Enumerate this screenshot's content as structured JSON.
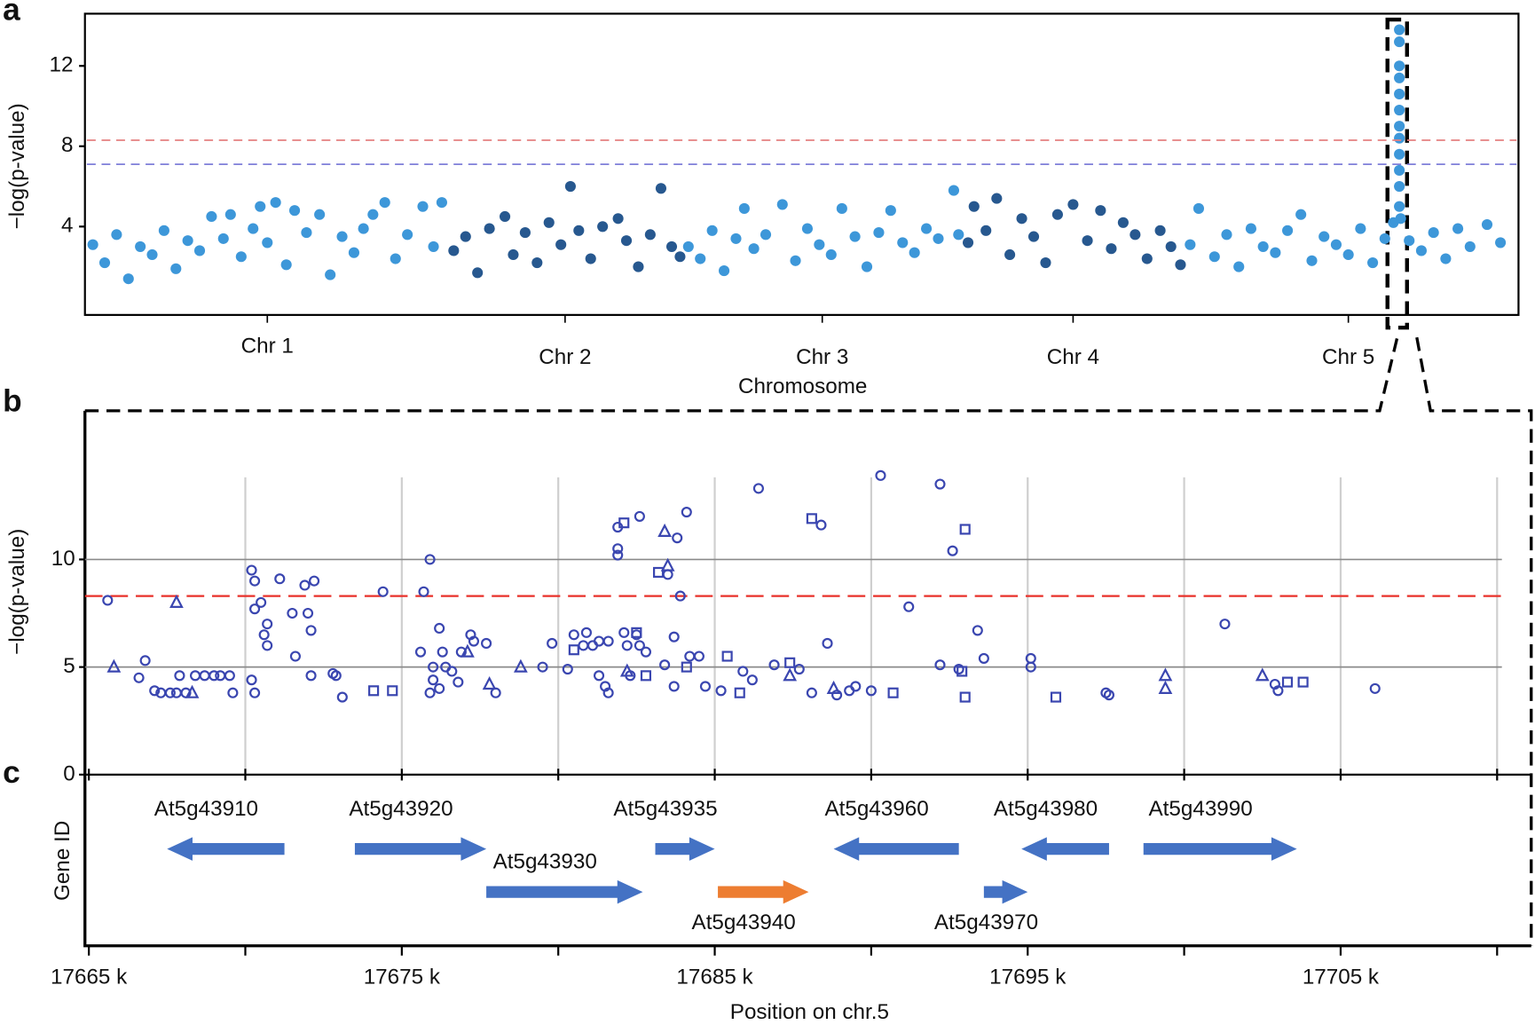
{
  "chart_data": [
    {
      "type": "manhattan",
      "label": "a",
      "xlabel": "Chromosome",
      "ylabel": "−log(p-value)",
      "ylim": [
        -0.4,
        14.6
      ],
      "yticks": [
        4,
        8,
        12
      ],
      "hlines": [
        {
          "value": 8.3,
          "color": "#e58080"
        },
        {
          "value": 7.1,
          "color": "#7f7fd8"
        }
      ],
      "categories": [
        "Chr 1",
        "Chr 2",
        "Chr 3",
        "Chr 4",
        "Chr 5"
      ],
      "series": [
        {
          "color": "#3d97d9",
          "x": [
            0.5,
            1.5,
            2.5,
            3.5,
            4.5,
            5.5,
            6.5,
            7.5,
            8.5,
            9.5,
            10.5,
            11.5,
            12.1,
            13.0,
            14.0,
            14.6,
            15.2,
            15.9,
            16.8,
            17.5,
            18.5,
            19.6,
            20.5,
            21.5,
            22.5,
            23.3,
            24.1,
            25.1,
            26.0,
            27.0,
            28.3,
            29.2,
            29.9
          ],
          "values": [
            3.1,
            2.2,
            3.6,
            1.4,
            3.0,
            2.6,
            3.8,
            1.9,
            3.3,
            2.8,
            4.5,
            3.4,
            4.6,
            2.5,
            3.9,
            5.0,
            3.2,
            5.2,
            2.1,
            4.8,
            3.7,
            4.6,
            1.6,
            3.5,
            2.7,
            3.9,
            4.6,
            5.2,
            2.4,
            3.6,
            5.0,
            3.0,
            5.2
          ]
        },
        {
          "color": "#27588f",
          "x": [
            0.5,
            1.5,
            2.5,
            3.5,
            4.8,
            5.5,
            6.5,
            7.5,
            8.5,
            9.5,
            10.3,
            11.0,
            12.0,
            13.0,
            14.3,
            15.0,
            16.0,
            17.0,
            17.9,
            18.8,
            19.5
          ],
          "values": [
            2.8,
            3.5,
            1.7,
            3.9,
            4.5,
            2.6,
            3.7,
            2.2,
            4.2,
            3.1,
            6.0,
            3.8,
            2.4,
            4.0,
            4.4,
            3.3,
            2.0,
            3.6,
            5.9,
            3.0,
            2.5
          ]
        },
        {
          "color": "#3d97d9",
          "x": [
            0.5,
            1.5,
            2.5,
            3.5,
            4.5,
            5.2,
            6.0,
            7.0,
            8.4,
            9.5,
            10.5,
            11.5,
            12.5,
            13.4,
            14.5,
            15.5,
            16.5,
            17.5,
            18.5,
            19.5,
            20.5,
            21.5,
            22.8,
            23.2
          ],
          "values": [
            3.0,
            2.4,
            3.8,
            1.8,
            3.4,
            4.9,
            2.9,
            3.6,
            5.1,
            2.3,
            3.9,
            3.1,
            2.6,
            4.9,
            3.5,
            2.0,
            3.7,
            4.8,
            3.2,
            2.7,
            3.9,
            3.4,
            5.8,
            3.6
          ]
        },
        {
          "color": "#27588f",
          "x": [
            0.5,
            1.0,
            2.0,
            2.9,
            4.0,
            5.0,
            6.0,
            7.0,
            8.0,
            9.3,
            10.5,
            11.6,
            12.5,
            13.5,
            14.5,
            15.5,
            16.6,
            17.5,
            18.3
          ],
          "values": [
            3.2,
            5.0,
            3.8,
            5.4,
            2.6,
            4.4,
            3.5,
            2.2,
            4.6,
            5.1,
            3.3,
            4.8,
            2.9,
            4.2,
            3.6,
            2.4,
            3.8,
            3.0,
            2.1
          ]
        },
        {
          "color": "#3d97d9",
          "x": [
            0.5,
            1.2,
            2.5,
            3.5,
            4.5,
            5.5,
            6.5,
            7.5,
            8.5,
            9.6,
            10.5,
            11.5,
            12.5,
            13.5,
            14.5,
            15.5,
            16.5,
            17.2,
            17.69,
            17.69,
            17.69,
            17.69,
            17.69,
            17.69,
            17.69,
            17.69,
            17.69,
            17.69,
            17.69,
            17.69,
            17.8,
            18.5,
            19.5,
            20.5,
            21.5,
            22.5,
            23.5,
            24.9,
            26.0
          ],
          "values": [
            3.1,
            4.9,
            2.5,
            3.6,
            2.0,
            3.9,
            3.0,
            2.7,
            3.8,
            4.6,
            2.3,
            3.5,
            3.1,
            2.6,
            3.9,
            2.2,
            3.4,
            4.2,
            13.8,
            13.2,
            12.0,
            11.4,
            10.6,
            9.8,
            9.0,
            8.4,
            7.6,
            6.8,
            6.0,
            5.0,
            4.4,
            3.3,
            2.8,
            3.7,
            2.4,
            3.9,
            3.0,
            4.1,
            3.2
          ]
        }
      ]
    },
    {
      "type": "scatter",
      "label": "b",
      "ylabel": "−log(p-value)",
      "xlim": [
        17664.875,
        17711.09
      ],
      "ylim": [
        0,
        17
      ],
      "yticks": [
        0,
        5,
        10
      ],
      "xgrid": [
        17670,
        17675,
        17680,
        17685,
        17690,
        17695,
        17700,
        17705,
        17710
      ],
      "hlines": [
        {
          "value": 8.3,
          "color": "#e8302a"
        }
      ],
      "series": [
        {
          "marker": "circle",
          "color": "#3a46b0",
          "x": [
            17665.6,
            17666.6,
            17666.8,
            17667.1,
            17667.3,
            17667.6,
            17667.8,
            17668.1,
            17667.9,
            17668.4,
            17668.7,
            17669.0,
            17669.2,
            17669.5,
            17669.6,
            17670.2,
            17670.3,
            17670.5,
            17670.3,
            17670.7,
            17670.6,
            17670.7,
            17670.2,
            17670.3,
            17671.1,
            17671.5,
            17671.6,
            17671.9,
            17672.2,
            17672.0,
            17672.1,
            17672.1,
            17672.8,
            17672.9,
            17673.1,
            17674.4,
            17675.7,
            17675.9,
            17675.6,
            17676.2,
            17676.0,
            17676.0,
            17676.2,
            17675.9,
            17676.3,
            17676.4,
            17676.6,
            17676.9,
            17677.2,
            17677.3,
            17677.7,
            17676.8,
            17678.0,
            17679.5,
            17679.8,
            17680.3,
            17680.5,
            17680.8,
            17680.9,
            17681.1,
            17681.3,
            17681.6,
            17681.3,
            17681.5,
            17681.6,
            17681.9,
            17681.9,
            17681.9,
            17682.6,
            17682.1,
            17682.2,
            17682.5,
            17682.6,
            17682.3,
            17682.8,
            17683.5,
            17683.8,
            17684.1,
            17683.7,
            17683.9,
            17683.4,
            17683.7,
            17684.2,
            17684.5,
            17684.7,
            17685.2,
            17685.9,
            17686.4,
            17686.2,
            17686.9,
            17687.7,
            17688.1,
            17688.4,
            17688.6,
            17688.9,
            17689.3,
            17689.5,
            17690.0,
            17690.3,
            17691.2,
            17692.2,
            17692.6,
            17692.2,
            17692.8,
            17693.4,
            17693.6,
            17695.1,
            17695.1,
            17697.5,
            17697.6,
            17701.3,
            17702.9,
            17703.0,
            17706.1
          ],
          "values": [
            8.1,
            4.5,
            5.3,
            3.9,
            3.8,
            3.8,
            3.8,
            3.8,
            4.6,
            4.6,
            4.6,
            4.6,
            4.6,
            4.6,
            3.8,
            9.5,
            9.0,
            8.0,
            7.7,
            7.0,
            6.5,
            6.0,
            4.4,
            3.8,
            9.1,
            7.5,
            5.5,
            8.8,
            9.0,
            7.5,
            6.7,
            4.6,
            4.7,
            4.6,
            3.6,
            8.5,
            8.5,
            10.0,
            5.7,
            6.8,
            5.0,
            4.4,
            4.0,
            3.8,
            5.7,
            5.0,
            4.8,
            5.7,
            6.5,
            6.2,
            6.1,
            4.3,
            3.8,
            5.0,
            6.1,
            4.9,
            6.5,
            6.0,
            6.6,
            6.0,
            6.2,
            6.2,
            4.6,
            4.1,
            3.8,
            11.5,
            10.2,
            10.5,
            12.0,
            6.6,
            6.0,
            6.5,
            6.0,
            4.6,
            5.7,
            9.3,
            11.0,
            12.2,
            6.4,
            8.3,
            5.1,
            4.1,
            5.5,
            5.5,
            4.1,
            3.9,
            4.8,
            13.3,
            4.4,
            5.1,
            4.9,
            3.8,
            11.6,
            6.1,
            3.7,
            3.9,
            4.1,
            3.9,
            13.9,
            7.8,
            13.5,
            10.4,
            5.1,
            4.9,
            6.7,
            5.4,
            5.4,
            5.0,
            3.8,
            3.7,
            7.0,
            4.2,
            3.9,
            4.0
          ]
        },
        {
          "marker": "square",
          "color": "#3a46b0",
          "x": [
            17674.1,
            17674.7,
            17680.5,
            17682.1,
            17682.5,
            17682.8,
            17683.2,
            17684.1,
            17685.4,
            17685.8,
            17687.4,
            17688.1,
            17690.7,
            17693.0,
            17693.0,
            17692.9,
            17695.9,
            17703.3,
            17703.8
          ],
          "values": [
            3.9,
            3.9,
            5.8,
            11.7,
            6.6,
            4.6,
            9.4,
            5.0,
            5.5,
            3.8,
            5.2,
            11.9,
            3.8,
            11.4,
            3.6,
            4.8,
            3.6,
            4.3,
            4.3
          ]
        },
        {
          "marker": "triangle",
          "color": "#3a46b0",
          "x": [
            17665.8,
            17667.8,
            17668.3,
            17677.1,
            17677.8,
            17678.8,
            17683.4,
            17683.5,
            17682.2,
            17687.4,
            17688.8,
            17699.4,
            17699.4,
            17702.5
          ],
          "values": [
            5.0,
            8.0,
            3.8,
            5.7,
            4.2,
            5.0,
            11.3,
            9.7,
            4.8,
            4.6,
            4.0,
            4.6,
            4.0,
            4.6
          ]
        }
      ]
    },
    {
      "type": "gene",
      "label": "c",
      "ylabel": "Gene ID",
      "xlabel": "Position on chr.5",
      "xlim": [
        17664.875,
        17711.09
      ],
      "xticks": [
        {
          "value": 17665,
          "label": "17665 k"
        },
        {
          "value": 17675,
          "label": "17675 k"
        },
        {
          "value": 17685,
          "label": "17685 k"
        },
        {
          "value": 17695,
          "label": "17695 k"
        },
        {
          "value": 17705,
          "label": "17705 k"
        }
      ],
      "xminor_ticks": [
        17670,
        17680,
        17690,
        17700,
        17710
      ],
      "genes": [
        {
          "label": "At5g43910",
          "start": 17667.5,
          "end": 17671.25,
          "strand": "-",
          "color": "#4472c4"
        },
        {
          "label": "At5g43920",
          "start": 17673.5,
          "end": 17677.7,
          "strand": "+",
          "color": "#4472c4"
        },
        {
          "label": "At5g43930",
          "start": 17677.7,
          "end": 17682.7,
          "strand": "+",
          "color": "#4472c4"
        },
        {
          "label": "At5g43935",
          "start": 17683.1,
          "end": 17685.0,
          "strand": "+",
          "color": "#4472c4"
        },
        {
          "label": "At5g43940",
          "start": 17685.1,
          "end": 17688.0,
          "strand": "+",
          "color": "#ed7d31"
        },
        {
          "label": "At5g43960",
          "start": 17688.8,
          "end": 17692.8,
          "strand": "-",
          "color": "#4472c4"
        },
        {
          "label": "At5g43970",
          "start": 17693.6,
          "end": 17695.0,
          "strand": "+",
          "color": "#4472c4"
        },
        {
          "label": "At5g43980",
          "start": 17694.8,
          "end": 17697.6,
          "strand": "-",
          "color": "#4472c4"
        },
        {
          "label": "At5g43990",
          "start": 17698.7,
          "end": 17703.6,
          "strand": "+",
          "color": "#4472c4"
        }
      ]
    }
  ]
}
